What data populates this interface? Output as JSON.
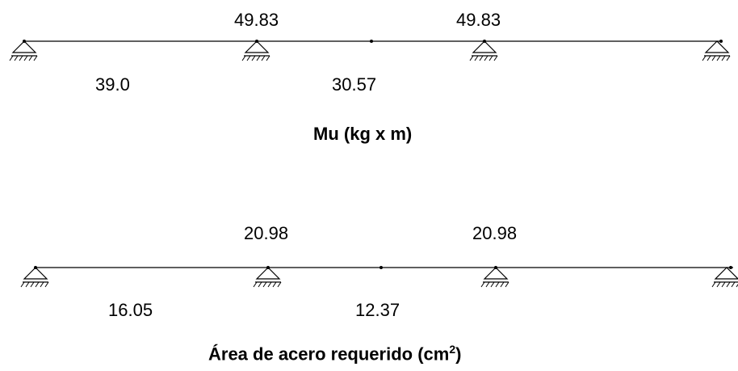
{
  "moment_diagram": {
    "top_values": [
      "49.83",
      "49.83"
    ],
    "bottom_values": [
      "39.0",
      "30.57"
    ],
    "title": "Mu (kg x m)"
  },
  "steel_diagram": {
    "top_values": [
      "20.98",
      "20.98"
    ],
    "bottom_values": [
      "16.05",
      "12.37"
    ],
    "title_main": "Área de acero requerido (cm",
    "title_sup": "2",
    "title_end": ")"
  }
}
